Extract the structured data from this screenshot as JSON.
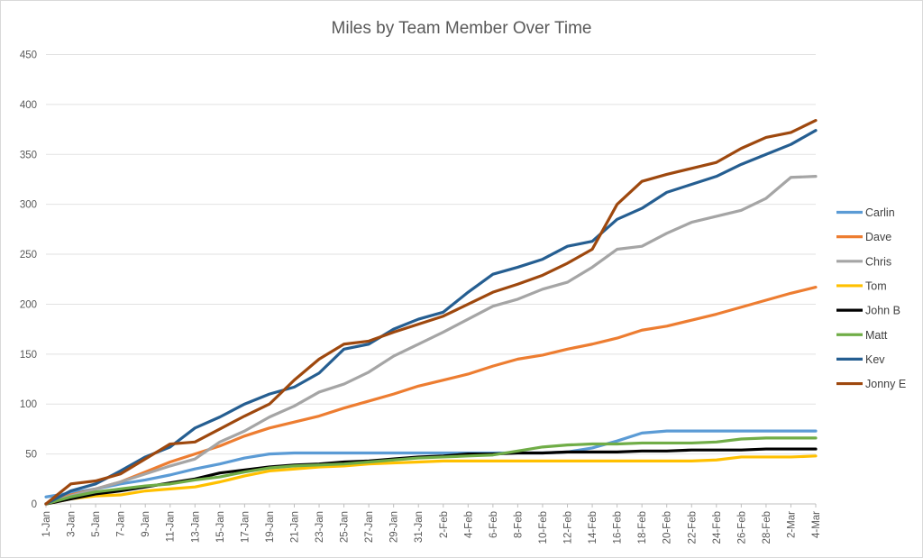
{
  "chart_data": {
    "type": "line",
    "title": "Miles by Team Member Over Time",
    "xlabel": "",
    "ylabel": "",
    "ylim": [
      0,
      450
    ],
    "y_tick_interval": 50,
    "y_ticks": [
      0,
      50,
      100,
      150,
      200,
      250,
      300,
      350,
      400,
      450
    ],
    "grid": true,
    "legend_position": "right",
    "categories": [
      "1-Jan",
      "3-Jan",
      "5-Jan",
      "7-Jan",
      "9-Jan",
      "11-Jan",
      "13-Jan",
      "15-Jan",
      "17-Jan",
      "19-Jan",
      "21-Jan",
      "23-Jan",
      "25-Jan",
      "27-Jan",
      "29-Jan",
      "31-Jan",
      "2-Feb",
      "4-Feb",
      "6-Feb",
      "8-Feb",
      "10-Feb",
      "12-Feb",
      "14-Feb",
      "16-Feb",
      "18-Feb",
      "20-Feb",
      "22-Feb",
      "24-Feb",
      "26-Feb",
      "28-Feb",
      "2-Mar",
      "4-Mar"
    ],
    "series": [
      {
        "name": "Carlin",
        "color": "#5B9BD5",
        "values": [
          7,
          11,
          15,
          20,
          24,
          29,
          35,
          40,
          46,
          50,
          51,
          51,
          51,
          51,
          51,
          51,
          51,
          51,
          51,
          51,
          51,
          52,
          56,
          63,
          71,
          73,
          73,
          73,
          73,
          73,
          73,
          73
        ]
      },
      {
        "name": "Dave",
        "color": "#ED7D31",
        "values": [
          0,
          9,
          15,
          22,
          32,
          42,
          50,
          58,
          68,
          76,
          82,
          88,
          96,
          103,
          110,
          118,
          124,
          130,
          138,
          145,
          149,
          155,
          160,
          166,
          174,
          178,
          184,
          190,
          197,
          204,
          211,
          217
        ]
      },
      {
        "name": "Chris",
        "color": "#A5A5A5",
        "values": [
          0,
          8,
          15,
          22,
          30,
          38,
          45,
          62,
          73,
          87,
          98,
          112,
          120,
          132,
          148,
          160,
          172,
          185,
          198,
          205,
          215,
          222,
          237,
          255,
          258,
          271,
          282,
          288,
          294,
          306,
          327,
          328
        ]
      },
      {
        "name": "Tom",
        "color": "#FFC000",
        "values": [
          0,
          5,
          8,
          9,
          13,
          15,
          17,
          22,
          28,
          33,
          35,
          37,
          38,
          40,
          41,
          42,
          43,
          43,
          43,
          43,
          43,
          43,
          43,
          43,
          43,
          43,
          43,
          44,
          47,
          47,
          47,
          48
        ]
      },
      {
        "name": "John B",
        "color": "#000000",
        "values": [
          0,
          5,
          10,
          13,
          17,
          21,
          25,
          31,
          34,
          37,
          39,
          40,
          42,
          43,
          45,
          47,
          48,
          50,
          50,
          51,
          51,
          52,
          52,
          52,
          53,
          53,
          54,
          54,
          54,
          55,
          55,
          55
        ]
      },
      {
        "name": "Matt",
        "color": "#70AD47",
        "values": [
          0,
          7,
          12,
          15,
          18,
          20,
          24,
          27,
          32,
          36,
          38,
          39,
          40,
          42,
          44,
          46,
          47,
          48,
          49,
          53,
          57,
          59,
          60,
          60,
          61,
          61,
          61,
          62,
          65,
          66,
          66,
          66
        ]
      },
      {
        "name": "Kev",
        "color": "#255E91",
        "values": [
          0,
          13,
          20,
          33,
          47,
          57,
          76,
          87,
          100,
          110,
          117,
          131,
          155,
          160,
          175,
          185,
          192,
          212,
          230,
          237,
          245,
          258,
          263,
          285,
          296,
          312,
          320,
          328,
          340,
          350,
          360,
          374
        ]
      },
      {
        "name": "Jonny E",
        "color": "#9E480E",
        "values": [
          0,
          20,
          23,
          30,
          45,
          60,
          62,
          75,
          88,
          100,
          124,
          145,
          160,
          163,
          172,
          180,
          188,
          200,
          212,
          220,
          229,
          241,
          255,
          300,
          323,
          330,
          336,
          342,
          356,
          367,
          372,
          384
        ]
      }
    ]
  }
}
